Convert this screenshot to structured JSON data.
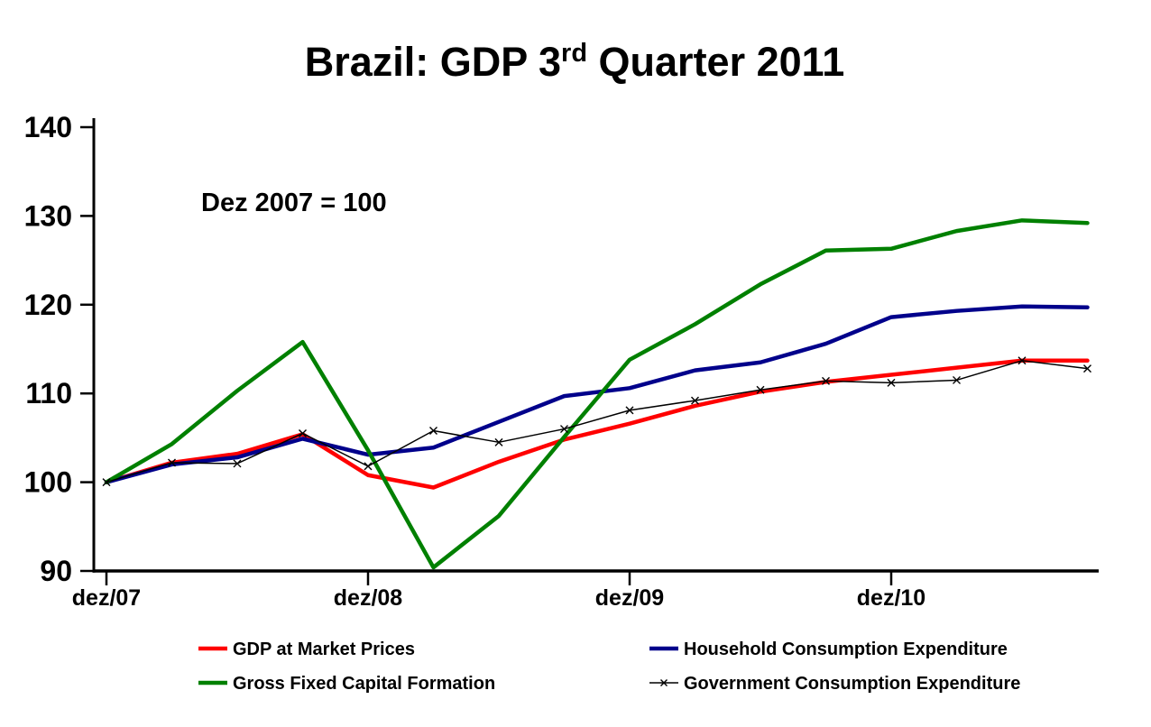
{
  "title": {
    "prefix": "Brazil: GDP 3",
    "sup": "rd",
    "suffix": " Quarter 2011"
  },
  "chart_data": {
    "type": "line",
    "title": "Brazil: GDP 3rd Quarter 2011",
    "annotation": "Dez 2007 = 100",
    "x": [
      "dez/07",
      "mar/08",
      "jun/08",
      "sep/08",
      "dez/08",
      "mar/09",
      "jun/09",
      "sep/09",
      "dez/09",
      "mar/10",
      "jun/10",
      "sep/10",
      "dez/10",
      "mar/11",
      "jun/11",
      "sep/11"
    ],
    "x_axis_tick_labels": [
      "dez/07",
      "dez/08",
      "dez/09",
      "dez/10"
    ],
    "x_axis_tick_indices": [
      0,
      4,
      8,
      12
    ],
    "ylim": [
      90,
      140
    ],
    "y_ticks": [
      90,
      100,
      110,
      120,
      130,
      140
    ],
    "grid": false,
    "legend_position": "bottom-two-columns",
    "series": [
      {
        "name": "GDP at Market Prices",
        "color": "#FF0000",
        "line_width": "thick",
        "marker": "none",
        "values": [
          100,
          102.2,
          103.2,
          105.4,
          100.8,
          99.4,
          102.3,
          104.8,
          106.6,
          108.6,
          110.2,
          111.3,
          112.1,
          112.9,
          113.7,
          113.7
        ]
      },
      {
        "name": "Household Consumption Expenditure",
        "color": "#00008B",
        "line_width": "thick",
        "marker": "none",
        "values": [
          100,
          102.0,
          102.8,
          104.9,
          103.1,
          103.9,
          106.8,
          109.7,
          110.6,
          112.6,
          113.5,
          115.6,
          118.6,
          119.3,
          119.8,
          119.7
        ]
      },
      {
        "name": "Gross Fixed Capital Formation",
        "color": "#008000",
        "line_width": "thick",
        "marker": "none",
        "values": [
          100,
          104.3,
          110.3,
          115.8,
          103.6,
          90.4,
          96.2,
          105.1,
          113.8,
          117.8,
          122.3,
          126.1,
          126.3,
          128.3,
          129.5,
          129.2
        ]
      },
      {
        "name": "Government Consumption Expenditure",
        "color": "#000000",
        "line_width": "thin",
        "marker": "x",
        "values": [
          100,
          102.2,
          102.1,
          105.5,
          101.8,
          105.8,
          104.5,
          106.0,
          108.1,
          109.2,
          110.4,
          111.4,
          111.2,
          111.5,
          113.7,
          112.8
        ]
      }
    ]
  }
}
